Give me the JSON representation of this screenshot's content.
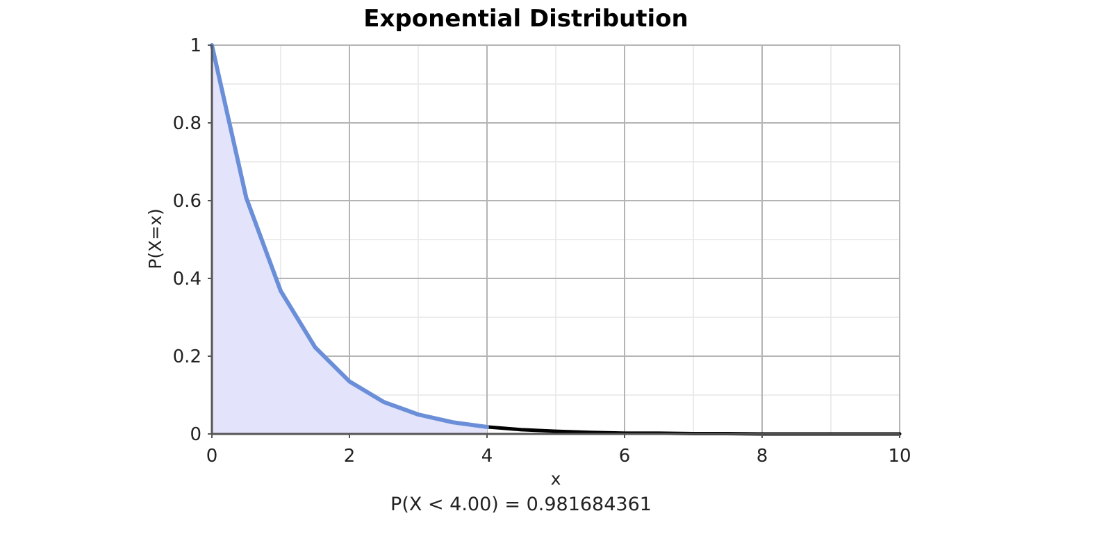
{
  "chart_data": {
    "type": "area",
    "title": "Exponential Distribution",
    "xlabel": "x",
    "ylabel": "P(X=x)",
    "xlim": [
      0,
      10
    ],
    "ylim": [
      0,
      1
    ],
    "x_ticks": [
      "0",
      "2",
      "4",
      "6",
      "8",
      "10"
    ],
    "y_ticks": [
      "0",
      "0.2",
      "0.4",
      "0.6",
      "0.8",
      "1"
    ],
    "grid": true,
    "distribution": "exponential",
    "rate": 1,
    "shaded_region": {
      "from": 0,
      "to": 4
    },
    "series": [
      {
        "x": [
          0,
          0.5,
          1,
          1.5,
          2,
          2.5,
          3,
          3.5,
          4,
          4.5,
          5,
          5.5,
          6,
          6.5,
          7,
          7.5,
          8,
          8.5,
          9,
          9.5,
          10
        ],
        "y": [
          1,
          0.607,
          0.368,
          0.223,
          0.135,
          0.082,
          0.05,
          0.03,
          0.018,
          0.011,
          0.007,
          0.004,
          0.002,
          0.002,
          0.001,
          0.001,
          0,
          0,
          0,
          0,
          0
        ]
      }
    ],
    "annotation": "P(X < 4.00) = 0.981684361",
    "colors": {
      "shaded_curve": "#6a8fd8",
      "shaded_fill": "#e3e4fb",
      "unshaded_curve": "#000000",
      "grid_major": "#b4b4b4",
      "grid_minor": "#e6e6e6",
      "axis": "#555555"
    }
  }
}
